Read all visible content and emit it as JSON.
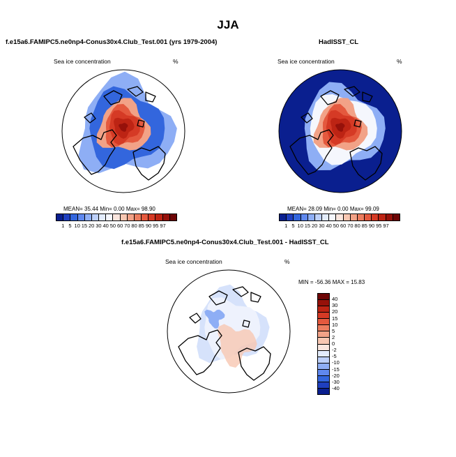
{
  "title": "JJA",
  "colors": {
    "ice_seq": [
      "#0a1f8f",
      "#1f3fbf",
      "#3366dd",
      "#5f88ee",
      "#8eaef5",
      "#bdd0fa",
      "#e3ecfc",
      "#f5f7fd",
      "#fbe6de",
      "#f8c7b2",
      "#f2a287",
      "#ec7d5f",
      "#e4593e",
      "#d53a25",
      "#bd2414",
      "#96110a",
      "#6d0505"
    ],
    "diff_seq": [
      "#6d0505",
      "#96110a",
      "#bd2414",
      "#d53a25",
      "#e4593e",
      "#ec7d5f",
      "#f2a287",
      "#f8c7b2",
      "#fbe6de",
      "#e3ecfc",
      "#bdd0fa",
      "#8eaef5",
      "#5f88ee",
      "#3366dd",
      "#1f3fbf",
      "#0a1f8f"
    ]
  },
  "panels": {
    "model": {
      "title": "f.e15a6.FAMIPC5.ne0np4-Conus30x4.Club_Test.001 (yrs 1979-2004)",
      "label": "Sea ice concentration",
      "units": "%",
      "stats": "MEAN=  35.44  Min=   0.00  Max=  98.90"
    },
    "obs": {
      "title": "HadISST_CL",
      "label": "Sea ice concentration",
      "units": "%",
      "stats": "MEAN=  28.09  Min=   0.00  Max=  99.09"
    },
    "diff": {
      "title": "f.e15a6.FAMIPC5.ne0np4-Conus30x4.Club_Test.001 - HadISST_CL",
      "label": "Sea ice concentration",
      "units": "%",
      "stats": "MIN = -56.36 MAX =  15.83"
    }
  },
  "chart_data": [
    {
      "type": "heatmap",
      "title": "f.e15a6.FAMIPC5.ne0np4-Conus30x4.Club_Test.001 (yrs 1979-2004)",
      "projection": "north-polar-stereographic",
      "variable": "Sea ice concentration",
      "units": "%",
      "mean": 35.44,
      "min": 0.0,
      "max": 98.9,
      "colorbar_levels": [
        1,
        5,
        10,
        15,
        20,
        30,
        40,
        50,
        60,
        70,
        80,
        85,
        90,
        95,
        97
      ]
    },
    {
      "type": "heatmap",
      "title": "HadISST_CL",
      "projection": "north-polar-stereographic",
      "variable": "Sea ice concentration",
      "units": "%",
      "mean": 28.09,
      "min": 0.0,
      "max": 99.09,
      "colorbar_levels": [
        1,
        5,
        10,
        15,
        20,
        30,
        40,
        50,
        60,
        70,
        80,
        85,
        90,
        95,
        97
      ]
    },
    {
      "type": "heatmap",
      "title": "f.e15a6.FAMIPC5.ne0np4-Conus30x4.Club_Test.001 - HadISST_CL",
      "projection": "north-polar-stereographic",
      "variable": "Sea ice concentration",
      "units": "%",
      "min": -56.36,
      "max": 15.83,
      "colorbar_levels": [
        40,
        30,
        20,
        15,
        10,
        5,
        2,
        0,
        -2,
        -5,
        -10,
        -15,
        -20,
        -30,
        -40
      ],
      "colorbar_orientation": "vertical"
    }
  ]
}
